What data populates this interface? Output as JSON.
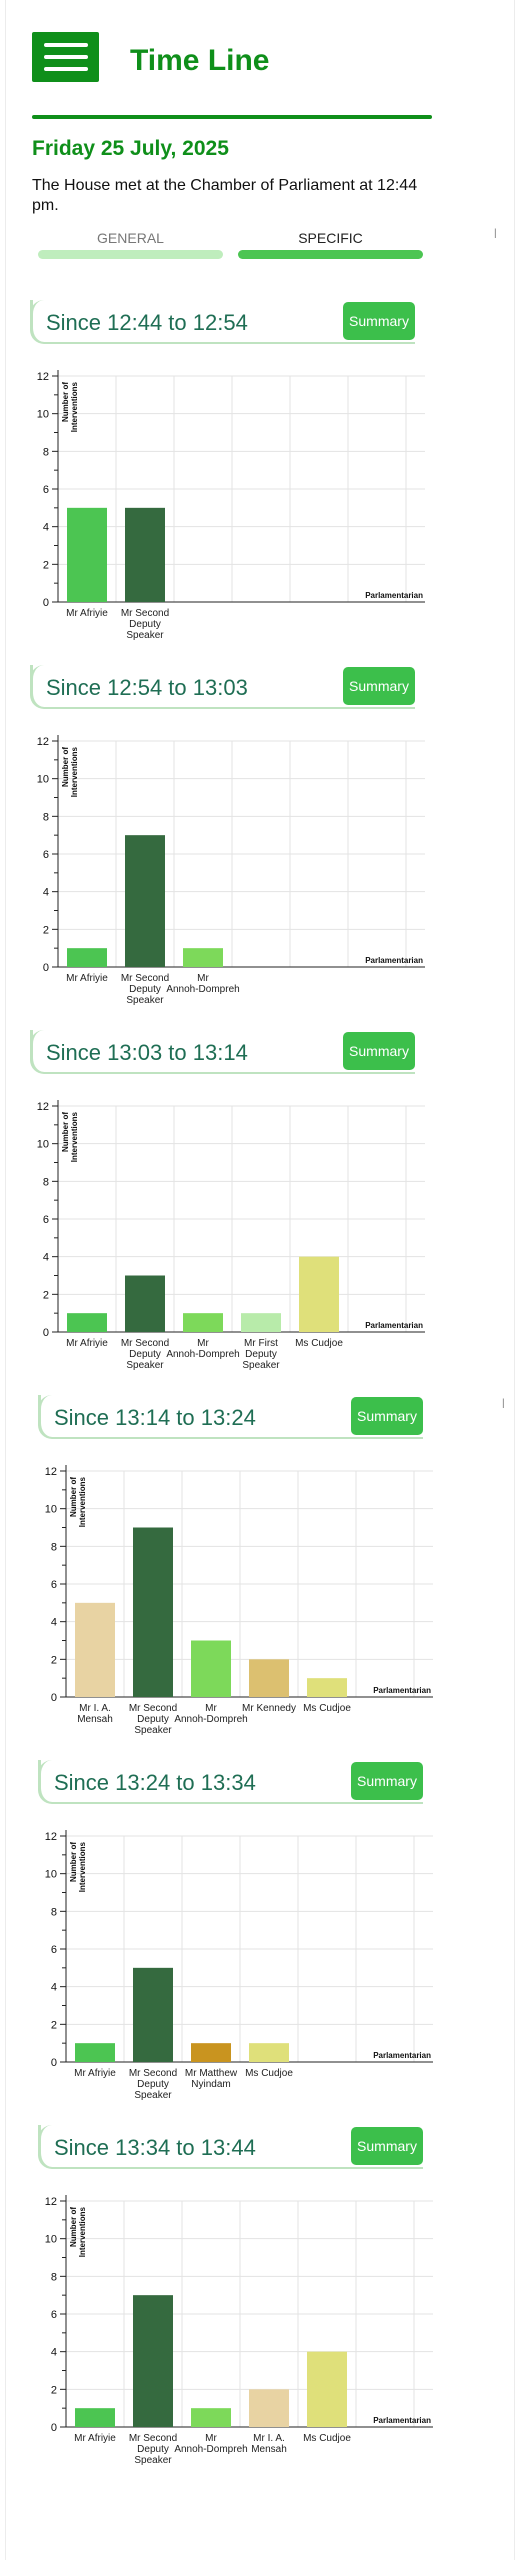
{
  "header": {
    "title": "Time Line",
    "menu_icon": "hamburger-menu-icon"
  },
  "date": "Friday 25 July, 2025",
  "intro": "The House met at the Chamber of Parliament at 12:44 pm.",
  "tabs": [
    {
      "label": "GENERAL",
      "active": false
    },
    {
      "label": "SPECIFIC",
      "active": true
    }
  ],
  "summary_label": "Summary",
  "colors": {
    "brand_green": "#0f8f1a",
    "summary_button": "#3cbf4b",
    "section_title": "#1f6e54"
  },
  "sections": [
    {
      "title": "Since 12:44 to 12:54",
      "chart_data": {
        "type": "bar",
        "categories": [
          "Mr Afriyie",
          "Mr Second Deputy Speaker"
        ],
        "values": [
          5,
          5
        ],
        "colors": [
          "#4cc552",
          "#356a3f"
        ],
        "ylabel": "Number of Interventions",
        "xlabel": "Parlamentarian",
        "ylim": [
          0,
          12
        ],
        "grid": true
      }
    },
    {
      "title": "Since 12:54 to 13:03",
      "chart_data": {
        "type": "bar",
        "categories": [
          "Mr Afriyie",
          "Mr Second Deputy Speaker",
          "Mr Annoh-Dompreh"
        ],
        "values": [
          1,
          7,
          1
        ],
        "colors": [
          "#4cc552",
          "#356a3f",
          "#7dd95a"
        ],
        "ylabel": "Number of Interventions",
        "xlabel": "Parlamentarian",
        "ylim": [
          0,
          12
        ],
        "grid": true
      }
    },
    {
      "title": "Since 13:03 to 13:14",
      "chart_data": {
        "type": "bar",
        "categories": [
          "Mr Afriyie",
          "Mr Second Deputy Speaker",
          "Mr Annoh-Dompreh",
          "Mr First Deputy Speaker",
          "Ms Cudjoe"
        ],
        "values": [
          1,
          3,
          1,
          1,
          4
        ],
        "colors": [
          "#4cc552",
          "#356a3f",
          "#7dd95a",
          "#b8ebaa",
          "#dfe07a"
        ],
        "ylabel": "Number of Interventions",
        "xlabel": "Parlamentarian",
        "ylim": [
          0,
          12
        ],
        "grid": true
      }
    },
    {
      "title": "Since 13:14 to 13:24",
      "chart_data": {
        "type": "bar",
        "categories": [
          "Mr I. A. Mensah",
          "Mr Second Deputy Speaker",
          "Mr Annoh-Dompreh",
          "Mr Kennedy",
          "Ms Cudjoe"
        ],
        "values": [
          5,
          9,
          3,
          2,
          1
        ],
        "colors": [
          "#e8d3a3",
          "#356a3f",
          "#7dd95a",
          "#dcc070",
          "#dfe07a"
        ],
        "ylabel": "Number of Interventions",
        "xlabel": "Parlamentarian",
        "ylim": [
          0,
          12
        ],
        "grid": true
      }
    },
    {
      "title": "Since 13:24 to 13:34",
      "chart_data": {
        "type": "bar",
        "categories": [
          "Mr Afriyie",
          "Mr Second Deputy Speaker",
          "Mr Matthew Nyindam",
          "Ms Cudjoe"
        ],
        "values": [
          1,
          5,
          1,
          1
        ],
        "colors": [
          "#4cc552",
          "#356a3f",
          "#c9941f",
          "#dfe07a"
        ],
        "ylabel": "Number of Interventions",
        "xlabel": "Parlamentarian",
        "ylim": [
          0,
          12
        ],
        "grid": true
      }
    },
    {
      "title": "Since 13:34 to 13:44",
      "chart_data": {
        "type": "bar",
        "categories": [
          "Mr Afriyie",
          "Mr Second Deputy Speaker",
          "Mr Annoh-Dompreh",
          "Mr I. A. Mensah",
          "Ms Cudjoe"
        ],
        "values": [
          1,
          7,
          1,
          2,
          4
        ],
        "colors": [
          "#4cc552",
          "#356a3f",
          "#7dd95a",
          "#e8d3a3",
          "#dfe07a"
        ],
        "ylabel": "Number of Interventions",
        "xlabel": "Parlamentarian",
        "ylim": [
          0,
          12
        ],
        "grid": true
      }
    }
  ]
}
